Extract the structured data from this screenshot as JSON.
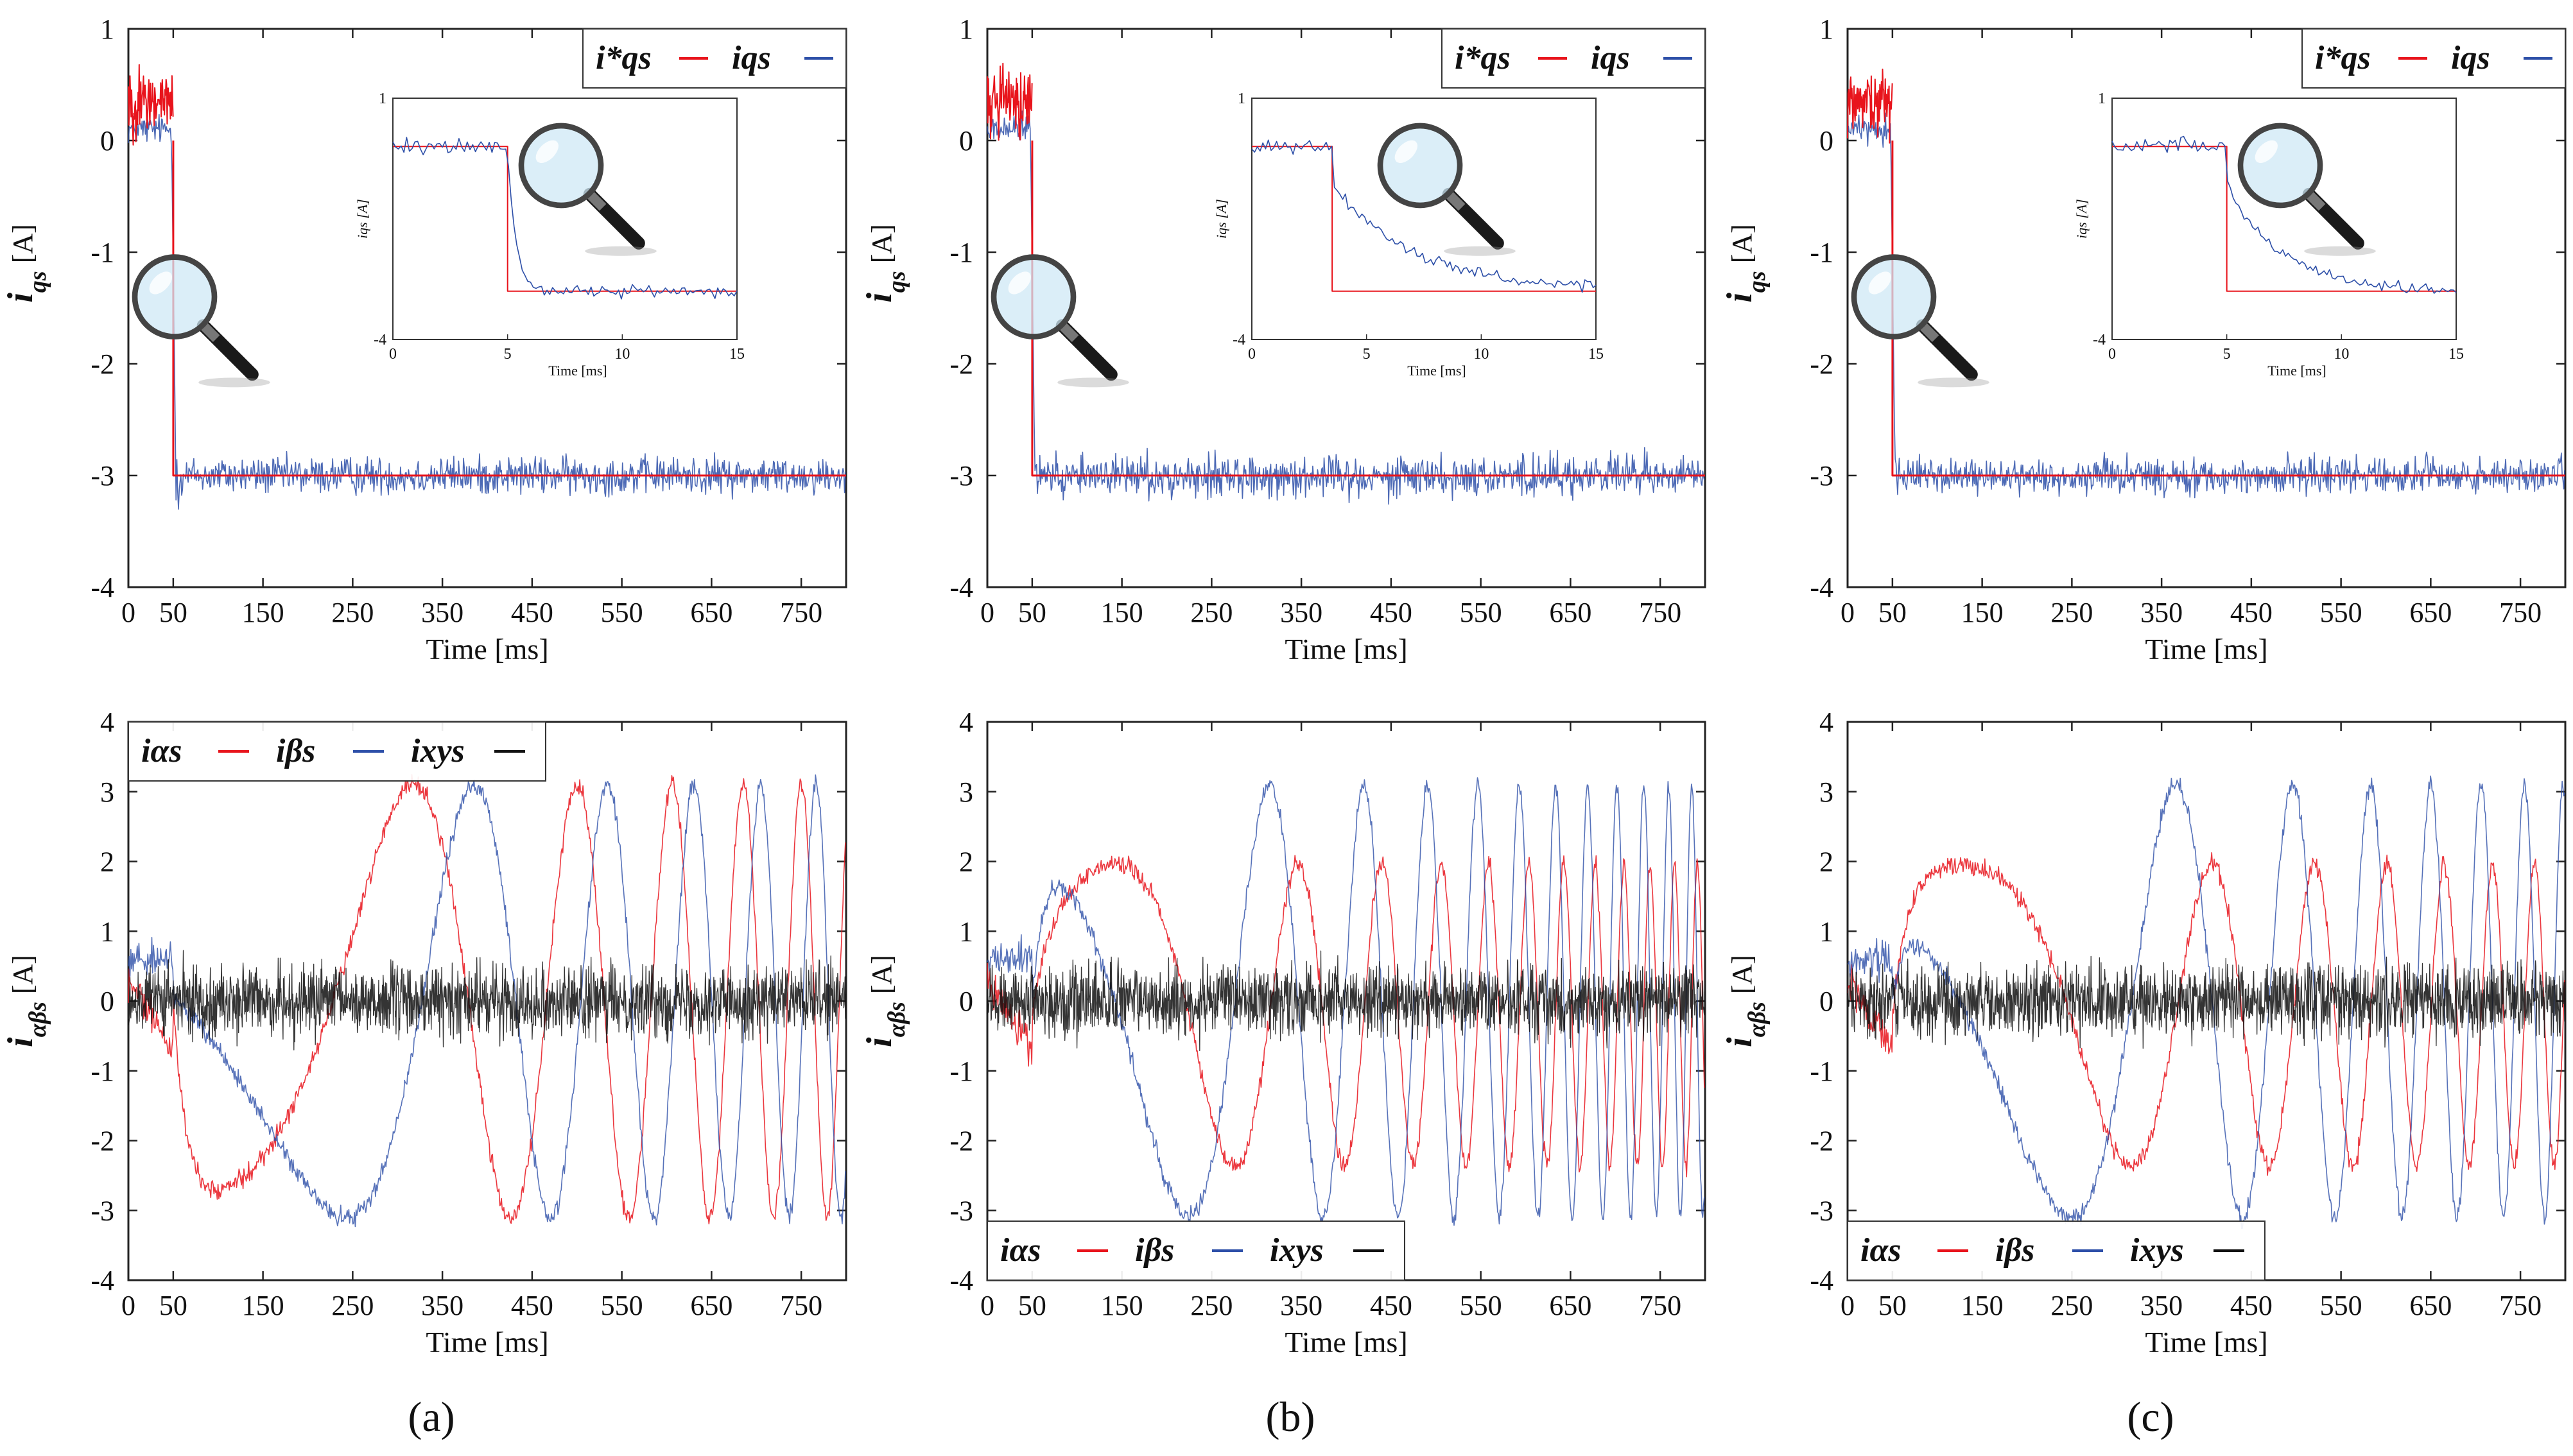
{
  "colors": {
    "reference": "#e8141c",
    "measured": "#2d4fa8",
    "xy": "#111111",
    "axis": "#222222"
  },
  "panels": [
    {
      "label": "(a)"
    },
    {
      "label": "(b)"
    },
    {
      "label": "(c)"
    }
  ],
  "chart_data": [
    {
      "id": "a-top",
      "type": "line",
      "panel": "(a)",
      "xlabel": "Time [ms]",
      "ylabel": "i_qs [A]",
      "xlim": [
        0,
        800
      ],
      "ylim": [
        -4,
        1
      ],
      "xticks": [
        "0",
        "50",
        "150",
        "250",
        "350",
        "450",
        "550",
        "650",
        "750"
      ],
      "yticks": [
        "1",
        "0",
        "-1",
        "-2",
        "-3",
        "-4"
      ],
      "legend": [
        "i*qs",
        "iqs"
      ],
      "series": [
        {
          "name": "i*qs",
          "description": "reference q-axis current",
          "segments": [
            [
              0,
              0
            ],
            [
              50,
              0
            ],
            [
              50,
              -3
            ],
            [
              800,
              -3
            ]
          ],
          "noise_before_step": 0.45
        },
        {
          "name": "iqs",
          "description": "measured q-axis current",
          "pre_step_mean": 0.1,
          "settled_mean": -3.0,
          "noise_amplitude": 0.25
        }
      ],
      "inset": {
        "xlabel": "Time [ms]",
        "ylabel": "iqs [A]",
        "xlim": [
          0,
          15
        ],
        "ylim": [
          -4,
          1
        ],
        "xticks": [
          "0",
          "5",
          "10",
          "15"
        ],
        "yticks": [
          "1",
          "-4"
        ],
        "step_time_ms": 5,
        "reference_before": 0,
        "reference_after": -3
      }
    },
    {
      "id": "a-bottom",
      "type": "line",
      "panel": "(a)",
      "xlabel": "Time [ms]",
      "ylabel": "i_αβs [A]",
      "xlim": [
        0,
        800
      ],
      "ylim": [
        -4,
        4
      ],
      "xticks": [
        "0",
        "50",
        "150",
        "250",
        "350",
        "450",
        "550",
        "650",
        "750"
      ],
      "yticks": [
        "4",
        "3",
        "2",
        "1",
        "0",
        "-1",
        "-2",
        "-3",
        "-4"
      ],
      "legend": [
        "iαs",
        "iβs",
        "ixys"
      ],
      "legend_position": "top-left",
      "series": [
        {
          "name": "iαs",
          "description": "α-axis current (red) — amplitude about 3.2 A, frequency increasing after 300 ms"
        },
        {
          "name": "iβs",
          "description": "β-axis current (blue) — about 90° shifted from iαs"
        },
        {
          "name": "ixys",
          "description": "x-y current (black) — noise around 0 A, about ±0.9 A"
        }
      ]
    },
    {
      "id": "b-top",
      "type": "line",
      "panel": "(b)",
      "xlabel": "Time [ms]",
      "ylabel": "i_qs [A]",
      "xlim": [
        0,
        800
      ],
      "ylim": [
        -4,
        1
      ],
      "xticks": [
        "0",
        "50",
        "150",
        "250",
        "350",
        "450",
        "550",
        "650",
        "750"
      ],
      "yticks": [
        "1",
        "0",
        "-1",
        "-2",
        "-3",
        "-4"
      ],
      "legend": [
        "i*qs",
        "iqs"
      ],
      "series": [
        {
          "name": "i*qs",
          "segments": [
            [
              0,
              0
            ],
            [
              50,
              0
            ],
            [
              50,
              -3
            ],
            [
              800,
              -3
            ]
          ],
          "noise_before_step": 0.45
        },
        {
          "name": "iqs",
          "pre_step_mean": 0.1,
          "settled_mean": -3.0,
          "noise_amplitude": 0.28
        }
      ],
      "inset": {
        "xlabel": "Time [ms]",
        "ylabel": "iqs [A]",
        "xlim": [
          0,
          15
        ],
        "ylim": [
          -4,
          1
        ],
        "xticks": [
          "0",
          "5",
          "10",
          "15"
        ],
        "yticks": [
          "1",
          "-4"
        ],
        "step_time_ms": 3.5,
        "reference_before": 0,
        "reference_after": -3
      }
    },
    {
      "id": "b-bottom",
      "type": "line",
      "panel": "(b)",
      "xlabel": "Time [ms]",
      "ylabel": "i_αβs [A]",
      "xlim": [
        0,
        800
      ],
      "ylim": [
        -4,
        4
      ],
      "xticks": [
        "0",
        "50",
        "150",
        "250",
        "350",
        "450",
        "550",
        "650",
        "750"
      ],
      "yticks": [
        "4",
        "3",
        "2",
        "1",
        "0",
        "-1",
        "-2",
        "-3",
        "-4"
      ],
      "legend": [
        "iαs",
        "iβs",
        "ixys"
      ],
      "legend_position": "bottom-left",
      "series": [
        {
          "name": "iαs",
          "description": "α-axis current (red) — faster frequency ramp"
        },
        {
          "name": "iβs",
          "description": "β-axis current (blue)"
        },
        {
          "name": "ixys",
          "description": "x-y current (black) — noise around 0 A"
        }
      ]
    },
    {
      "id": "c-top",
      "type": "line",
      "panel": "(c)",
      "xlabel": "Time [ms]",
      "ylabel": "i_qs [A]",
      "xlim": [
        0,
        800
      ],
      "ylim": [
        -4,
        1
      ],
      "xticks": [
        "0",
        "50",
        "150",
        "250",
        "350",
        "450",
        "550",
        "650",
        "750"
      ],
      "yticks": [
        "1",
        "0",
        "-1",
        "-2",
        "-3",
        "-4"
      ],
      "legend": [
        "i*qs",
        "iqs"
      ],
      "series": [
        {
          "name": "i*qs",
          "segments": [
            [
              0,
              0
            ],
            [
              50,
              0
            ],
            [
              50,
              -3
            ],
            [
              800,
              -3
            ]
          ],
          "noise_before_step": 0.45
        },
        {
          "name": "iqs",
          "pre_step_mean": 0.1,
          "settled_mean": -3.0,
          "noise_amplitude": 0.24
        }
      ],
      "inset": {
        "xlabel": "Time [ms]",
        "ylabel": "iqs [A]",
        "xlim": [
          0,
          15
        ],
        "ylim": [
          -4,
          1
        ],
        "xticks": [
          "0",
          "5",
          "10",
          "15"
        ],
        "yticks": [
          "1",
          "-4"
        ],
        "step_time_ms": 5,
        "reference_before": 0,
        "reference_after": -3
      }
    },
    {
      "id": "c-bottom",
      "type": "line",
      "panel": "(c)",
      "xlabel": "Time [ms]",
      "ylabel": "i_αβs [A]",
      "xlim": [
        0,
        800
      ],
      "ylim": [
        -4,
        4
      ],
      "xticks": [
        "0",
        "50",
        "150",
        "250",
        "350",
        "450",
        "550",
        "650",
        "750"
      ],
      "yticks": [
        "4",
        "3",
        "2",
        "1",
        "0",
        "-1",
        "-2",
        "-3",
        "-4"
      ],
      "legend": [
        "iαs",
        "iβs",
        "ixys"
      ],
      "legend_position": "bottom-left",
      "series": [
        {
          "name": "iαs",
          "description": "α-axis current (red)"
        },
        {
          "name": "iβs",
          "description": "β-axis current (blue)"
        },
        {
          "name": "ixys",
          "description": "x-y current (black) — noise around 0 A"
        }
      ]
    }
  ]
}
